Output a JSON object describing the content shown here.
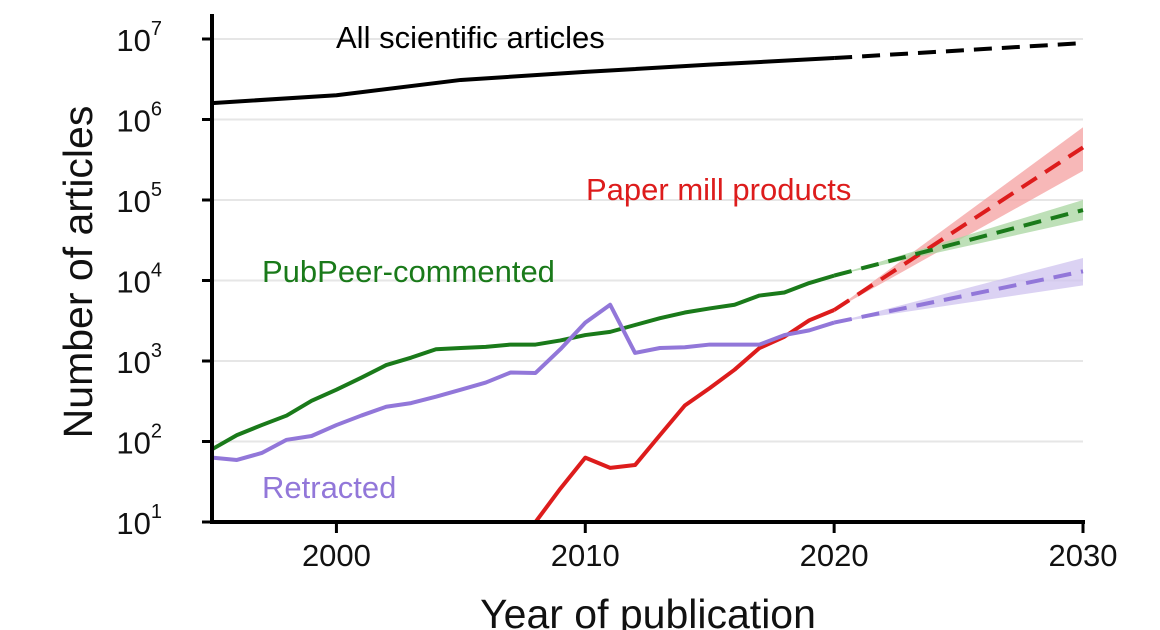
{
  "chart_data": {
    "type": "line",
    "title": "",
    "xlabel": "Year of publication",
    "ylabel": "Number of articles",
    "xlim": [
      1995,
      2030
    ],
    "ylim": [
      10,
      10000000
    ],
    "yscale": "log",
    "grid": "horizontal",
    "x_ticks": [
      "2000",
      "2010",
      "2020",
      "2030"
    ],
    "x_tick_values": [
      2000,
      2010,
      2020,
      2030
    ],
    "y_ticks": [
      {
        "base": "10",
        "exp": "1"
      },
      {
        "base": "10",
        "exp": "2"
      },
      {
        "base": "10",
        "exp": "3"
      },
      {
        "base": "10",
        "exp": "4"
      },
      {
        "base": "10",
        "exp": "5"
      },
      {
        "base": "10",
        "exp": "6"
      },
      {
        "base": "10",
        "exp": "7"
      }
    ],
    "series": [
      {
        "name": "All scientific articles",
        "color": "#000000",
        "x": [
          1995,
          2000,
          2005,
          2010,
          2015,
          2020
        ],
        "values": [
          1600000,
          2000000,
          3100000,
          3900000,
          4800000,
          5800000
        ],
        "projection": {
          "x": [
            2020,
            2030
          ],
          "values": [
            5800000,
            8900000
          ],
          "band_low": [
            5800000,
            8500000
          ],
          "band_high": [
            5800000,
            9300000
          ]
        }
      },
      {
        "name": "Paper mill products",
        "color": "#dd1c1c",
        "band_color": "#f4a0a0",
        "x": [
          2008,
          2009,
          2010,
          2011,
          2012,
          2013,
          2014,
          2015,
          2016,
          2017,
          2018,
          2019,
          2020
        ],
        "values": [
          10,
          26,
          63,
          47,
          51,
          120,
          280,
          460,
          780,
          1450,
          2000,
          3200,
          4300
        ],
        "projection": {
          "x": [
            2020,
            2030
          ],
          "values": [
            4300,
            450000
          ],
          "band_low": [
            4300,
            230000
          ],
          "band_high": [
            4300,
            800000
          ]
        }
      },
      {
        "name": "PubPeer-commented",
        "color": "#1a7a1a",
        "band_color": "#a8d5a0",
        "x": [
          1995,
          1996,
          1997,
          1998,
          1999,
          2000,
          2001,
          2002,
          2003,
          2004,
          2005,
          2006,
          2007,
          2008,
          2009,
          2010,
          2011,
          2012,
          2013,
          2014,
          2015,
          2016,
          2017,
          2018,
          2019,
          2020
        ],
        "values": [
          80,
          120,
          160,
          210,
          320,
          440,
          620,
          890,
          1100,
          1400,
          1450,
          1500,
          1600,
          1600,
          1800,
          2100,
          2300,
          2800,
          3400,
          4000,
          4500,
          5000,
          6500,
          7100,
          9300,
          11500
        ],
        "projection": {
          "x": [
            2020,
            2030
          ],
          "values": [
            11500,
            75000
          ],
          "band_low": [
            11500,
            56000
          ],
          "band_high": [
            11500,
            100000
          ]
        }
      },
      {
        "name": "Retracted",
        "color": "#9277d9",
        "band_color": "#cfc3ef",
        "x": [
          1995,
          1996,
          1997,
          1998,
          1999,
          2000,
          2001,
          2002,
          2003,
          2004,
          2005,
          2006,
          2007,
          2008,
          2009,
          2010,
          2011,
          2012,
          2013,
          2014,
          2015,
          2016,
          2017,
          2018,
          2019,
          2020
        ],
        "values": [
          63,
          59,
          72,
          105,
          117,
          160,
          210,
          270,
          300,
          360,
          440,
          540,
          720,
          710,
          1400,
          3000,
          5000,
          1260,
          1450,
          1480,
          1600,
          1600,
          1600,
          2100,
          2400,
          3000
        ],
        "projection": {
          "x": [
            2020,
            2030
          ],
          "values": [
            3000,
            13000
          ],
          "band_low": [
            3000,
            8700
          ],
          "band_high": [
            3000,
            19000
          ]
        }
      }
    ]
  }
}
